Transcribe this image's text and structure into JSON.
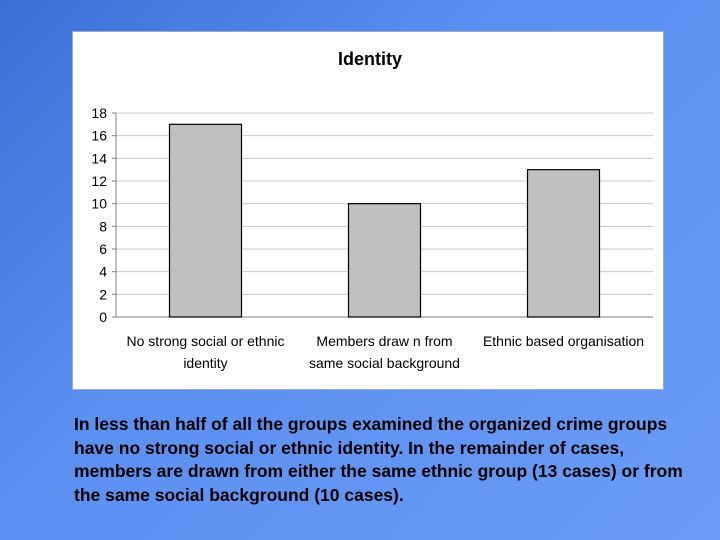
{
  "chart_data": {
    "type": "bar",
    "title": "Identity",
    "xlabel": "",
    "ylabel": "",
    "categories": [
      [
        "No strong social or ethnic",
        "identity"
      ],
      [
        "Members draw n from",
        "same social background"
      ],
      [
        "Ethnic based organisation"
      ]
    ],
    "values": [
      17,
      10,
      13
    ],
    "ylim": [
      0,
      18
    ],
    "yticks": [
      0,
      2,
      4,
      6,
      8,
      10,
      12,
      14,
      16,
      18
    ],
    "grid": true,
    "legend": "none",
    "bar_color": "#c0c0c0",
    "bar_stroke": "#000000"
  },
  "caption": "In less than half of all the groups examined the organized crime groups have no strong social or ethnic identity. In the remainder of cases, members are drawn from either the same ethnic group (13 cases) or from the same social background (10 cases)."
}
